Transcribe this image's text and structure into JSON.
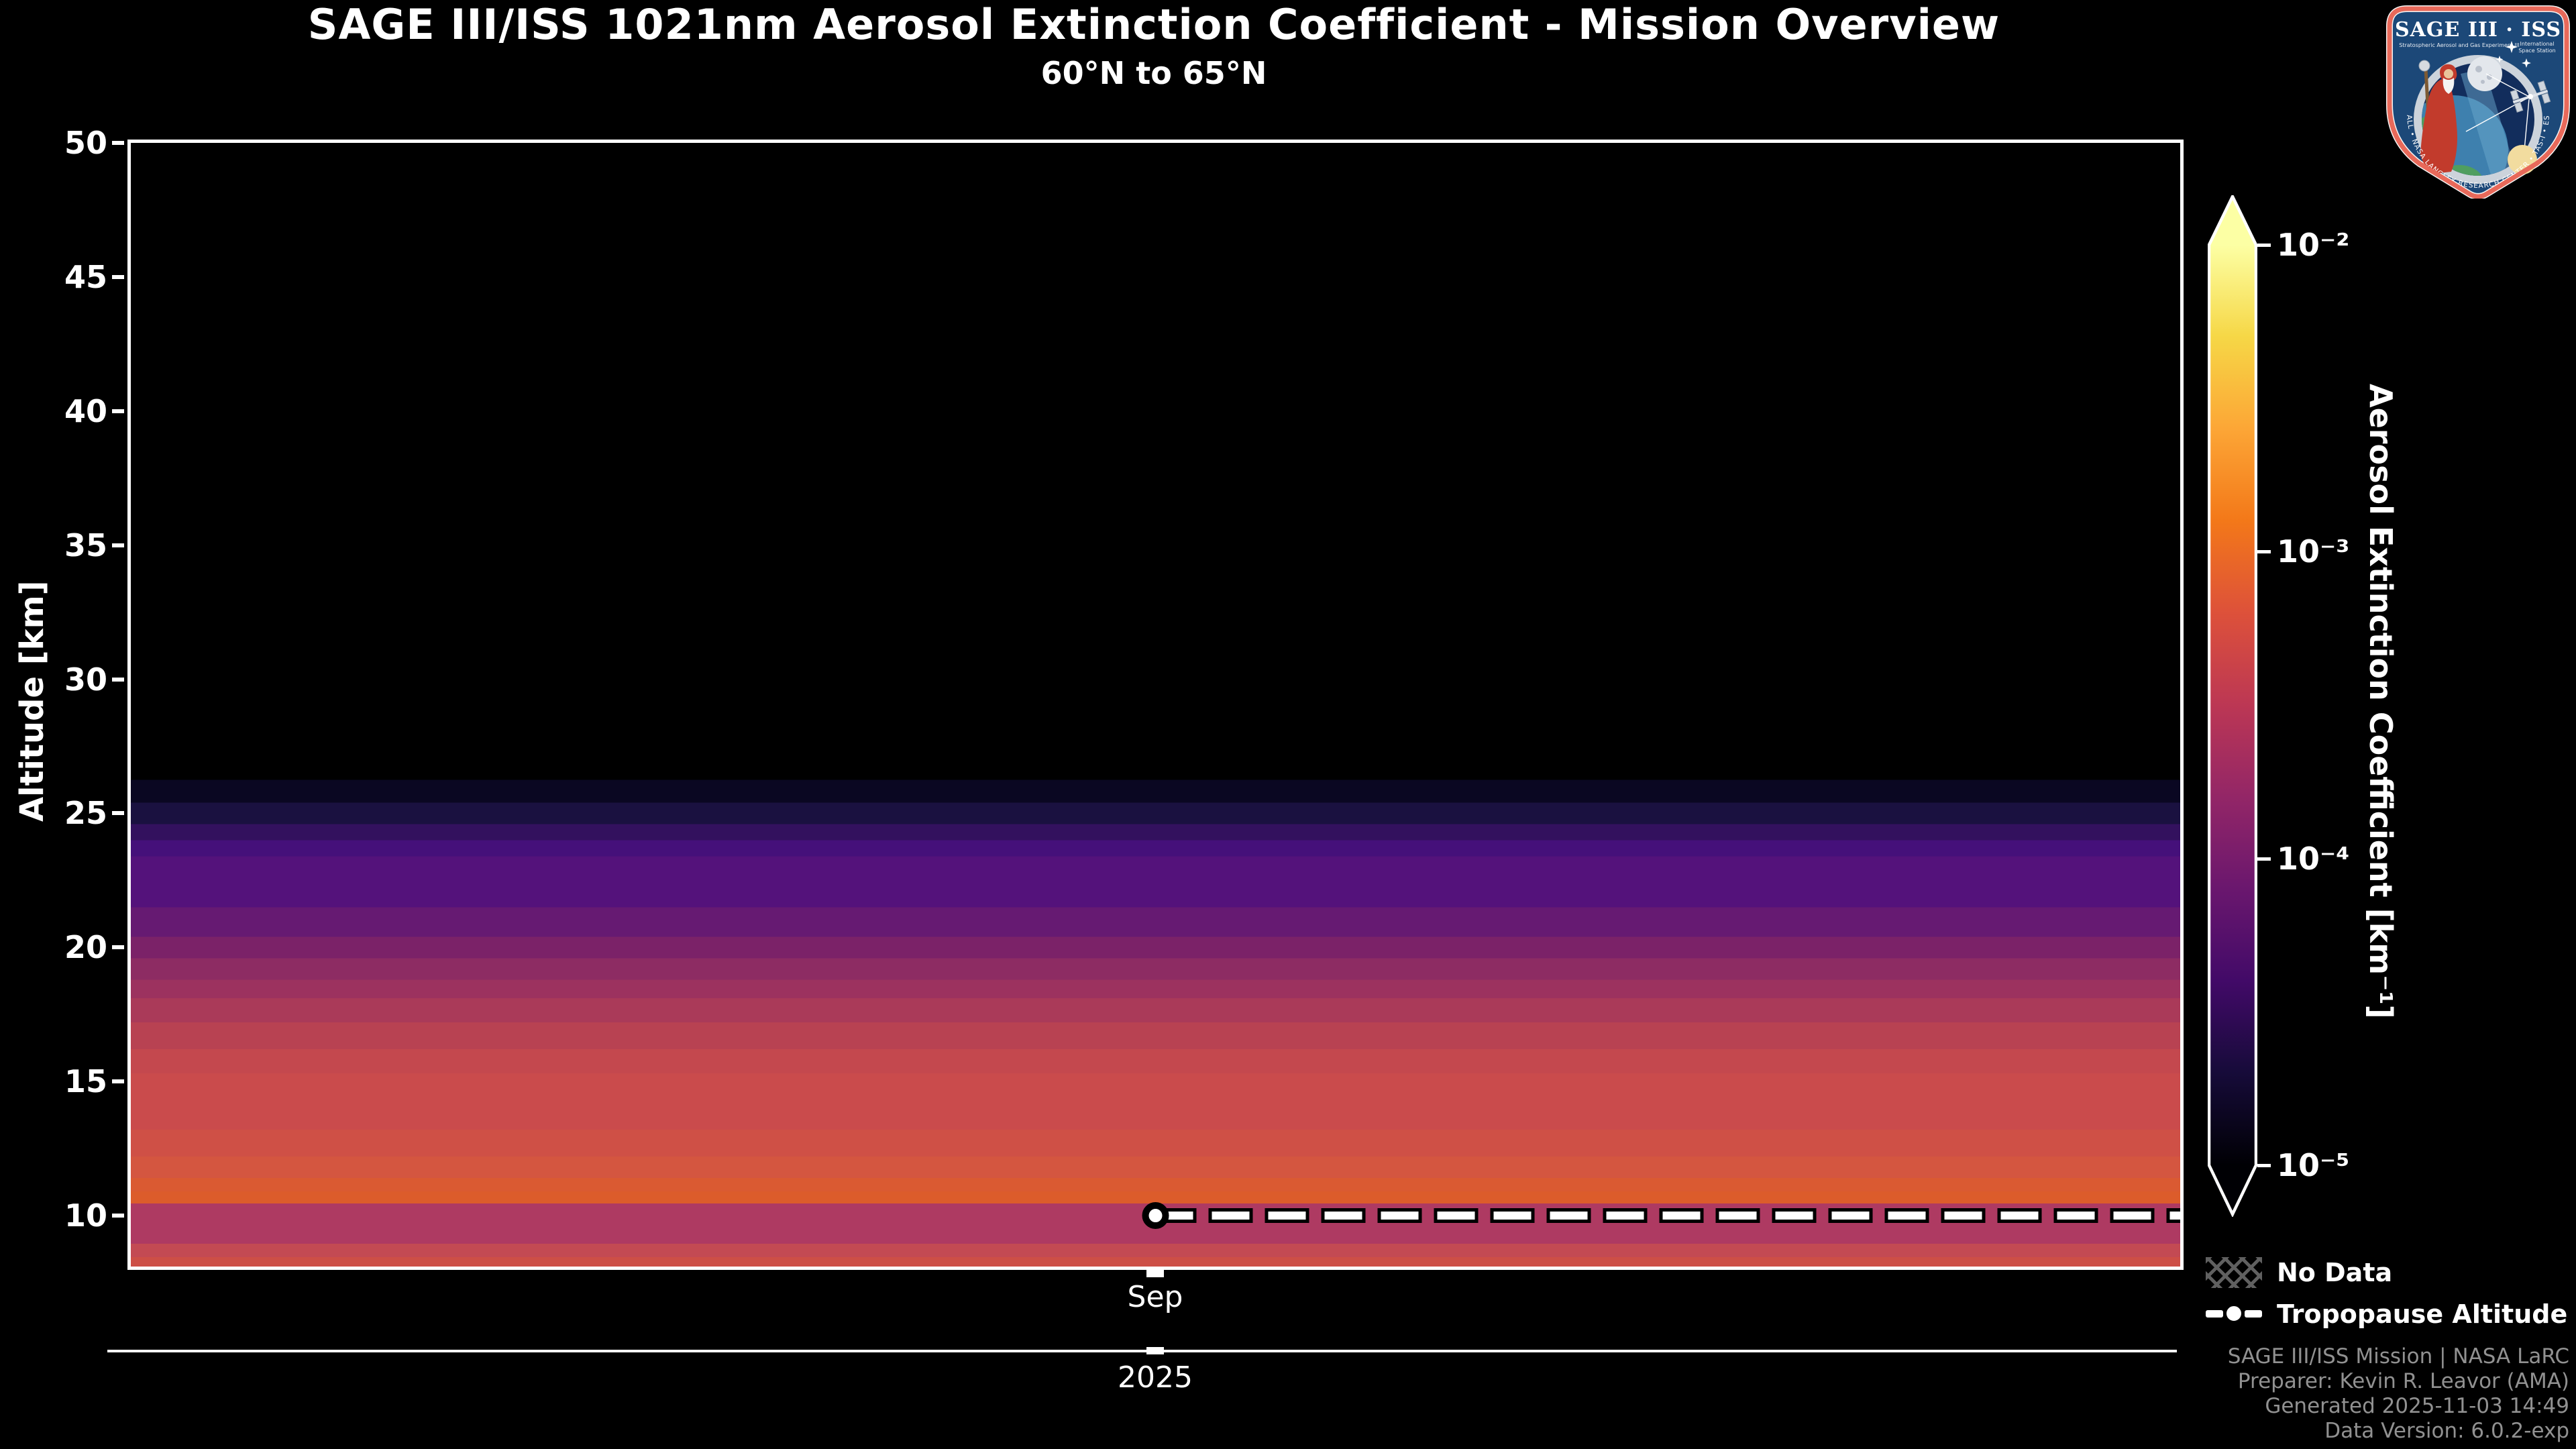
{
  "page": {
    "background": "#000000",
    "text_color": "#ffffff"
  },
  "header": {
    "title": "SAGE III/ISS 1021nm Aerosol Extinction Coefficient - Mission Overview",
    "subtitle": "60°N to 65°N"
  },
  "chart_data": {
    "type": "heatmap",
    "title": "SAGE III/ISS 1021nm Aerosol Extinction Coefficient - Mission Overview",
    "subtitle": "60°N to 65°N",
    "ylabel": "Altitude [km]",
    "y_ticks_km": [
      50,
      45,
      40,
      35,
      30,
      25,
      20,
      15,
      10
    ],
    "y_range_km": [
      8.1,
      50
    ],
    "x_tick_labels": [
      "Sep"
    ],
    "x_year_label": "2025",
    "grid": false,
    "data_top_km": 26.25,
    "tropopause": {
      "month": "Sep",
      "year": "2025",
      "altitude_km": 10.0,
      "x_frac": 0.5
    },
    "bands": [
      {
        "top": 26.25,
        "bottom": 25.4,
        "color": "#0a0722",
        "ext": 1.3e-05
      },
      {
        "top": 25.4,
        "bottom": 24.6,
        "color": "#1a1140",
        "ext": 2e-05
      },
      {
        "top": 24.6,
        "bottom": 24.0,
        "color": "#33115e",
        "ext": 3e-05
      },
      {
        "top": 24.0,
        "bottom": 23.4,
        "color": "#45107a",
        "ext": 4.3e-05
      },
      {
        "top": 23.4,
        "bottom": 21.5,
        "color": "#54127b",
        "ext": 5.2e-05
      },
      {
        "top": 21.5,
        "bottom": 20.4,
        "color": "#661a72",
        "ext": 7.4e-05
      },
      {
        "top": 20.4,
        "bottom": 19.6,
        "color": "#7b2268",
        "ext": 0.000105
      },
      {
        "top": 19.6,
        "bottom": 18.8,
        "color": "#8d2c63",
        "ext": 0.00015
      },
      {
        "top": 18.8,
        "bottom": 18.1,
        "color": "#9c325f",
        "ext": 0.0002
      },
      {
        "top": 18.1,
        "bottom": 17.2,
        "color": "#aa3a59",
        "ext": 0.00026
      },
      {
        "top": 17.2,
        "bottom": 16.2,
        "color": "#b84252",
        "ext": 0.00034
      },
      {
        "top": 16.2,
        "bottom": 15.3,
        "color": "#c4484e",
        "ext": 0.00043
      },
      {
        "top": 15.3,
        "bottom": 13.2,
        "color": "#ca4b4c",
        "ext": 0.00049
      },
      {
        "top": 13.2,
        "bottom": 12.2,
        "color": "#cf5046",
        "ext": 0.00059
      },
      {
        "top": 12.2,
        "bottom": 11.4,
        "color": "#d45640",
        "ext": 0.0007
      },
      {
        "top": 11.4,
        "bottom": 10.9,
        "color": "#da5a32",
        "ext": 0.00084
      },
      {
        "top": 10.9,
        "bottom": 10.45,
        "color": "#dc5c2b",
        "ext": 0.00092
      },
      {
        "top": 10.45,
        "bottom": 8.95,
        "color": "#ae3a62",
        "ext": 0.00028
      },
      {
        "top": 8.95,
        "bottom": 8.45,
        "color": "#c34a53",
        "ext": 0.00045
      },
      {
        "top": 8.45,
        "bottom": 8.1,
        "color": "#cd4f46",
        "ext": 0.00055
      }
    ],
    "colorbar": {
      "label": "Aerosol Extinction Coefficient [km⁻¹]",
      "scale": "log",
      "colormap": "inferno",
      "extend": "both",
      "range": [
        1e-05,
        0.01
      ],
      "ticks": [
        {
          "label": "10⁻²",
          "frac": 1.0
        },
        {
          "label": "10⁻³",
          "frac": 0.6667
        },
        {
          "label": "10⁻⁴",
          "frac": 0.3333
        },
        {
          "label": "10⁻⁵",
          "frac": 0.0
        }
      ],
      "gradient": [
        {
          "pos": 0.0,
          "color": "#000004"
        },
        {
          "pos": 0.1,
          "color": "#160b39"
        },
        {
          "pos": 0.2,
          "color": "#420a68"
        },
        {
          "pos": 0.3,
          "color": "#6a176e"
        },
        {
          "pos": 0.4,
          "color": "#932667"
        },
        {
          "pos": 0.5,
          "color": "#bc3754"
        },
        {
          "pos": 0.6,
          "color": "#dd513a"
        },
        {
          "pos": 0.7,
          "color": "#f37819"
        },
        {
          "pos": 0.8,
          "color": "#fca636"
        },
        {
          "pos": 0.9,
          "color": "#f6d746"
        },
        {
          "pos": 1.0,
          "color": "#fcffa4"
        }
      ]
    }
  },
  "legend": {
    "items": [
      {
        "icon": "no-data-hatch",
        "label": "No Data"
      },
      {
        "icon": "tropopause-line",
        "label": "Tropopause Altitude"
      }
    ]
  },
  "footer": {
    "lines": [
      "SAGE III/ISS Mission | NASA LaRC",
      "Preparer: Kevin R. Leavor (AMA)",
      "Generated 2025-11-03 14:49",
      "Data Version: 6.0.2-exp"
    ]
  },
  "logo": {
    "title": "SAGE III · ISS",
    "subtitle_left": "Stratospheric Aerosol and Gas Experiment III",
    "subtitle_right_1": "International",
    "subtitle_right_2": "Space Station",
    "ring_text": "BALL • NASA LANGLEY RESEARCH CENTER • TAS-I • ESA",
    "colors": {
      "border": "#e8695a",
      "field": "#1c4878",
      "ring": "#ccd3db",
      "space": "#122d5c",
      "earth_water": "#3e80ae",
      "earth_land": "#4f9e5f",
      "sun": "#f2dc9f",
      "moon": "#e3e7ec",
      "robe": "#c23b2c"
    }
  }
}
